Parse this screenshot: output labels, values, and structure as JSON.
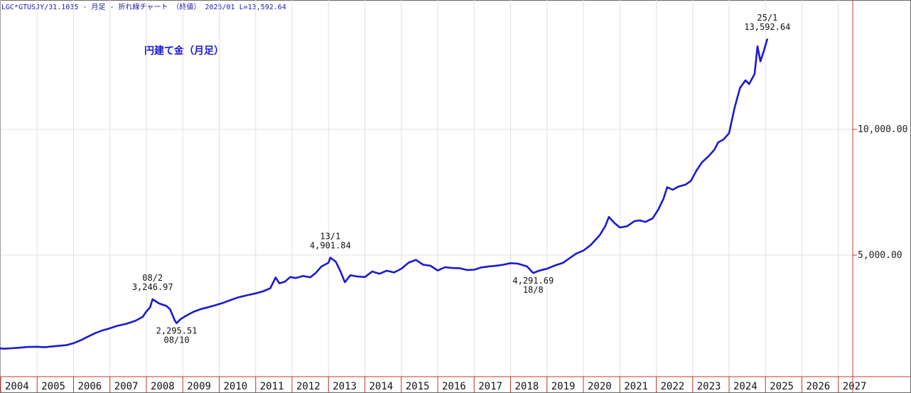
{
  "header": {
    "text": "LGC*GTUSJY/31.1035 - 月足 - 折れ線チャート （終値） 2025/01 L=13,592.64"
  },
  "chart_data": {
    "type": "line",
    "title": "円建て金（月足）",
    "xlabel": "",
    "ylabel": "",
    "xlim": [
      2004.0,
      2028.0
    ],
    "ylim": [
      480,
      14900
    ],
    "grid": true,
    "yaxis_position": "right",
    "line_color": "#1a1ad0",
    "yticks": [
      {
        "value": 5000,
        "label": "5,000.00"
      },
      {
        "value": 10000,
        "label": "10,000.00"
      }
    ],
    "xticks": [
      {
        "value": 2004,
        "label": "2004"
      },
      {
        "value": 2005,
        "label": "2005"
      },
      {
        "value": 2006,
        "label": "2006"
      },
      {
        "value": 2007,
        "label": "2007"
      },
      {
        "value": 2008,
        "label": "2008"
      },
      {
        "value": 2009,
        "label": "2009"
      },
      {
        "value": 2010,
        "label": "2010"
      },
      {
        "value": 2011,
        "label": "2011"
      },
      {
        "value": 2012,
        "label": "2012"
      },
      {
        "value": 2013,
        "label": "2013"
      },
      {
        "value": 2014,
        "label": "2014"
      },
      {
        "value": 2015,
        "label": "2015"
      },
      {
        "value": 2016,
        "label": "2016"
      },
      {
        "value": 2017,
        "label": "2017"
      },
      {
        "value": 2018,
        "label": "2018"
      },
      {
        "value": 2019,
        "label": "2019"
      },
      {
        "value": 2020,
        "label": "2020"
      },
      {
        "value": 2021,
        "label": "2021"
      },
      {
        "value": 2022,
        "label": "2022"
      },
      {
        "value": 2023,
        "label": "2023"
      },
      {
        "value": 2024,
        "label": "2024"
      },
      {
        "value": 2025,
        "label": "2025"
      },
      {
        "value": 2026,
        "label": "2026"
      },
      {
        "value": 2027,
        "label": "2027"
      }
    ],
    "series": [
      {
        "points": [
          [
            2003.92,
            1300
          ],
          [
            2004.1,
            1280
          ],
          [
            2004.3,
            1300
          ],
          [
            2004.5,
            1320
          ],
          [
            2004.75,
            1350
          ],
          [
            2005.0,
            1360
          ],
          [
            2005.2,
            1340
          ],
          [
            2005.5,
            1380
          ],
          [
            2005.8,
            1420
          ],
          [
            2006.0,
            1500
          ],
          [
            2006.2,
            1620
          ],
          [
            2006.45,
            1800
          ],
          [
            2006.6,
            1900
          ],
          [
            2006.8,
            2010
          ],
          [
            2006.95,
            2070
          ],
          [
            2007.2,
            2190
          ],
          [
            2007.45,
            2270
          ],
          [
            2007.7,
            2390
          ],
          [
            2007.9,
            2550
          ],
          [
            2008.0,
            2760
          ],
          [
            2008.1,
            2920
          ],
          [
            2008.17,
            3246.97
          ],
          [
            2008.35,
            3080
          ],
          [
            2008.55,
            2980
          ],
          [
            2008.65,
            2850
          ],
          [
            2008.78,
            2400
          ],
          [
            2008.83,
            2295.51
          ],
          [
            2008.95,
            2470
          ],
          [
            2009.1,
            2600
          ],
          [
            2009.3,
            2750
          ],
          [
            2009.5,
            2860
          ],
          [
            2009.7,
            2930
          ],
          [
            2009.9,
            3010
          ],
          [
            2010.1,
            3100
          ],
          [
            2010.3,
            3210
          ],
          [
            2010.5,
            3310
          ],
          [
            2010.75,
            3400
          ],
          [
            2011.0,
            3480
          ],
          [
            2011.2,
            3560
          ],
          [
            2011.4,
            3680
          ],
          [
            2011.55,
            4110
          ],
          [
            2011.65,
            3880
          ],
          [
            2011.8,
            3940
          ],
          [
            2011.95,
            4130
          ],
          [
            2012.1,
            4090
          ],
          [
            2012.3,
            4170
          ],
          [
            2012.5,
            4120
          ],
          [
            2012.65,
            4290
          ],
          [
            2012.8,
            4540
          ],
          [
            2013.0,
            4700
          ],
          [
            2013.05,
            4901.84
          ],
          [
            2013.2,
            4740
          ],
          [
            2013.33,
            4350
          ],
          [
            2013.45,
            3920
          ],
          [
            2013.6,
            4200
          ],
          [
            2013.8,
            4150
          ],
          [
            2014.0,
            4130
          ],
          [
            2014.2,
            4350
          ],
          [
            2014.4,
            4260
          ],
          [
            2014.6,
            4380
          ],
          [
            2014.8,
            4310
          ],
          [
            2015.0,
            4460
          ],
          [
            2015.2,
            4700
          ],
          [
            2015.4,
            4810
          ],
          [
            2015.6,
            4620
          ],
          [
            2015.8,
            4580
          ],
          [
            2016.0,
            4390
          ],
          [
            2016.2,
            4520
          ],
          [
            2016.4,
            4490
          ],
          [
            2016.6,
            4480
          ],
          [
            2016.8,
            4410
          ],
          [
            2017.0,
            4420
          ],
          [
            2017.2,
            4510
          ],
          [
            2017.4,
            4550
          ],
          [
            2017.6,
            4580
          ],
          [
            2017.8,
            4620
          ],
          [
            2018.0,
            4680
          ],
          [
            2018.2,
            4660
          ],
          [
            2018.45,
            4550
          ],
          [
            2018.62,
            4291.69
          ],
          [
            2018.8,
            4390
          ],
          [
            2019.0,
            4460
          ],
          [
            2019.2,
            4580
          ],
          [
            2019.45,
            4700
          ],
          [
            2019.6,
            4860
          ],
          [
            2019.8,
            5060
          ],
          [
            2020.0,
            5180
          ],
          [
            2020.2,
            5400
          ],
          [
            2020.45,
            5800
          ],
          [
            2020.6,
            6150
          ],
          [
            2020.7,
            6520
          ],
          [
            2020.85,
            6280
          ],
          [
            2021.0,
            6100
          ],
          [
            2021.2,
            6150
          ],
          [
            2021.4,
            6350
          ],
          [
            2021.55,
            6380
          ],
          [
            2021.7,
            6320
          ],
          [
            2021.9,
            6460
          ],
          [
            2022.05,
            6800
          ],
          [
            2022.2,
            7250
          ],
          [
            2022.3,
            7700
          ],
          [
            2022.45,
            7600
          ],
          [
            2022.6,
            7720
          ],
          [
            2022.8,
            7800
          ],
          [
            2022.95,
            7950
          ],
          [
            2023.1,
            8350
          ],
          [
            2023.25,
            8680
          ],
          [
            2023.45,
            8950
          ],
          [
            2023.6,
            9200
          ],
          [
            2023.7,
            9480
          ],
          [
            2023.85,
            9600
          ],
          [
            2024.0,
            9850
          ],
          [
            2024.15,
            10850
          ],
          [
            2024.3,
            11650
          ],
          [
            2024.45,
            11950
          ],
          [
            2024.55,
            11800
          ],
          [
            2024.7,
            12200
          ],
          [
            2024.78,
            13300
          ],
          [
            2024.86,
            12700
          ],
          [
            2024.95,
            13100
          ],
          [
            2025.05,
            13592.64
          ]
        ]
      }
    ],
    "annotations": [
      {
        "lines": [
          "08/2",
          "3,246.97"
        ],
        "date": 2008.17,
        "value": 3246.97,
        "position": "above"
      },
      {
        "lines": [
          "2,295.51",
          "08/10"
        ],
        "date": 2008.83,
        "value": 2295.51,
        "position": "below"
      },
      {
        "lines": [
          "13/1",
          "4,901.84"
        ],
        "date": 2013.05,
        "value": 4901.84,
        "position": "above"
      },
      {
        "lines": [
          "4,291.69",
          "18/8"
        ],
        "date": 2018.62,
        "value": 4291.69,
        "position": "below"
      },
      {
        "lines": [
          "25/1",
          "13,592.64"
        ],
        "date": 2025.05,
        "value": 13592.64,
        "position": "above"
      }
    ]
  }
}
